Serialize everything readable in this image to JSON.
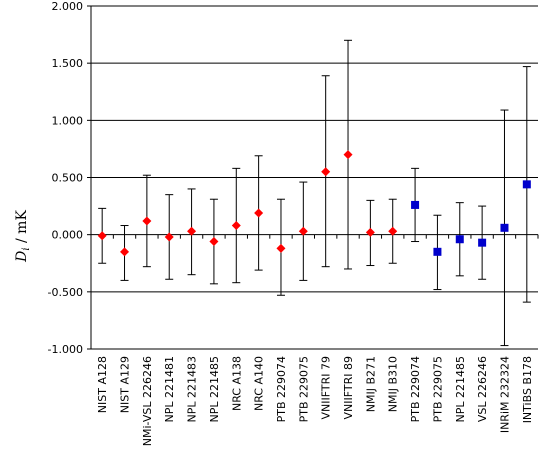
{
  "chart_data": {
    "type": "scatter",
    "title": "",
    "xlabel": "",
    "ylabel": {
      "main": "D",
      "sub": "i",
      "rest": " / mK"
    },
    "ylim": [
      -1.0,
      2.0
    ],
    "yticks": [
      "2.000",
      "1.500",
      "1.000",
      "0.500",
      "0.000",
      "-0.500",
      "-1.000"
    ],
    "ytick_values": [
      2.0,
      1.5,
      1.0,
      0.5,
      0.0,
      -0.5,
      -1.0
    ],
    "grid": "horizontal",
    "legend": "none",
    "categories": [
      "NIST A128",
      "NIST A129",
      "NMi-VSL 226246",
      "NPL 221481",
      "NPL 221483",
      "NPL 221485",
      "NRC A138",
      "NRC A140",
      "PTB 229074",
      "PTB 229075",
      "VNIIFTRI 79",
      "VNIIFTRI 89",
      "NMIJ B271",
      "NMIJ B310",
      "PTB 229074",
      "PTB 229075",
      "NPL 221485",
      "VSL 226246",
      "INRiM 232324",
      "INTiBS B178"
    ],
    "series": [
      {
        "marker": "diamond",
        "color": "#ff0000",
        "values": [
          -0.01,
          -0.15,
          0.12,
          -0.02,
          0.03,
          -0.06,
          0.08,
          0.19,
          -0.12,
          0.03,
          0.55,
          0.7,
          0.02,
          0.03,
          null,
          null,
          null,
          null,
          null,
          null
        ],
        "error_high": [
          0.23,
          0.08,
          0.52,
          0.35,
          0.4,
          0.31,
          0.58,
          0.69,
          0.31,
          0.46,
          1.39,
          1.7,
          0.3,
          0.31,
          null,
          null,
          null,
          null,
          null,
          null
        ],
        "error_low": [
          -0.25,
          -0.4,
          -0.28,
          -0.39,
          -0.35,
          -0.43,
          -0.42,
          -0.31,
          -0.53,
          -0.4,
          -0.28,
          -0.3,
          -0.27,
          -0.25,
          null,
          null,
          null,
          null,
          null,
          null
        ]
      },
      {
        "marker": "square",
        "color": "#0000cc",
        "values": [
          null,
          null,
          null,
          null,
          null,
          null,
          null,
          null,
          null,
          null,
          null,
          null,
          null,
          null,
          0.26,
          -0.15,
          -0.04,
          -0.07,
          0.06,
          0.44
        ],
        "error_high": [
          null,
          null,
          null,
          null,
          null,
          null,
          null,
          null,
          null,
          null,
          null,
          null,
          null,
          null,
          0.58,
          0.17,
          0.28,
          0.25,
          1.09,
          1.47
        ],
        "error_low": [
          null,
          null,
          null,
          null,
          null,
          null,
          null,
          null,
          null,
          null,
          null,
          null,
          null,
          null,
          -0.06,
          -0.48,
          -0.36,
          -0.39,
          -0.97,
          -0.59
        ]
      }
    ]
  }
}
